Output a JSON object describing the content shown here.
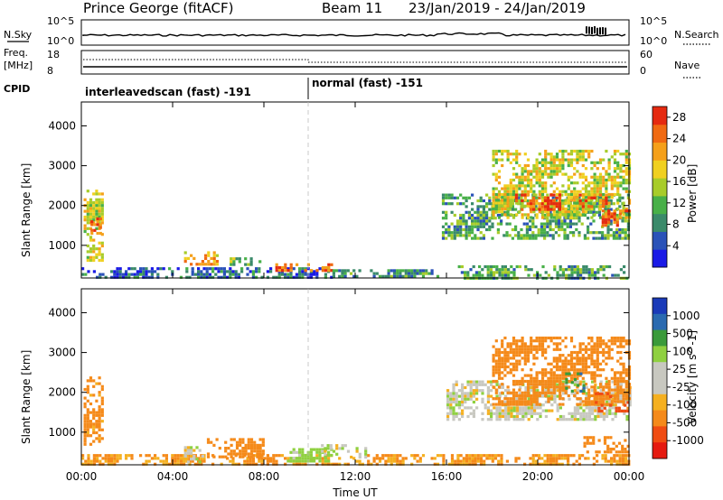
{
  "header": {
    "station": "Prince George (fitACF)",
    "beam": "Beam 11",
    "dates": "23/Jan/2019 - 24/Jan/2019"
  },
  "top_panels": {
    "nsky_label": "N.Sky",
    "nsky_ticks": [
      "10^5",
      "10^0"
    ],
    "nsearch_label": "N.Search",
    "nsearch_ticks": [
      "10^5",
      "10^0"
    ],
    "freq_label_line1": "Freq.",
    "freq_label_line2": "[MHz]",
    "freq_ticks": [
      "18",
      "8"
    ],
    "nave_label": "Nave",
    "nave_ticks": [
      "60",
      "0"
    ],
    "cpid_label": "CPID",
    "cpid_segments": [
      "interleavedscan (fast) -191",
      "normal (fast) -151"
    ]
  },
  "x_axis": {
    "label": "Time UT",
    "ticks": [
      "00:00",
      "04:00",
      "08:00",
      "12:00",
      "16:00",
      "20:00",
      "00:00"
    ]
  },
  "colors": {
    "power_scale": [
      "#1a1ae6",
      "#2a52b8",
      "#3a8a6a",
      "#48b048",
      "#a8cc2a",
      "#f0d020",
      "#f5a01a",
      "#f06a12",
      "#e52a10"
    ],
    "velocity_scale": [
      "#e51a10",
      "#f04c12",
      "#f58a1a",
      "#f5b020",
      "#c8c8c0",
      "#c8c8c0",
      "#8fd040",
      "#3a9a3a",
      "#2a6ab0",
      "#1a3ab8"
    ]
  },
  "chart_data": [
    {
      "type": "heatmap",
      "title": "",
      "xlabel": "",
      "ylabel": "Slant Range [km]",
      "ylim": [
        180,
        4600
      ],
      "xlim_hours": [
        0,
        24
      ],
      "yticks": [
        "1000",
        "2000",
        "3000",
        "4000"
      ],
      "colorbar_label": "Power [dB]",
      "colorbar_ticks": [
        "4",
        "8",
        "12",
        "16",
        "20",
        "24",
        "28"
      ],
      "regions": [
        {
          "t0": 0.1,
          "t1": 0.9,
          "r0": 600,
          "r1": 2400,
          "value": 18
        },
        {
          "t0": 0.4,
          "t1": 0.8,
          "r0": 1300,
          "r1": 1700,
          "value": 26
        },
        {
          "t0": 0.0,
          "t1": 11.0,
          "r0": 200,
          "r1": 450,
          "value": 8
        },
        {
          "t0": 4.5,
          "t1": 6.0,
          "r0": 550,
          "r1": 850,
          "value": 22
        },
        {
          "t0": 6.5,
          "t1": 7.8,
          "r0": 500,
          "r1": 700,
          "value": 14
        },
        {
          "t0": 8.5,
          "t1": 11.0,
          "r0": 350,
          "r1": 550,
          "value": 26
        },
        {
          "t0": 11.0,
          "t1": 16.0,
          "r0": 200,
          "r1": 400,
          "value": 10
        },
        {
          "t0": 15.8,
          "t1": 24.0,
          "r0": 1200,
          "r1": 2300,
          "value": 12
        },
        {
          "t0": 18.0,
          "t1": 24.0,
          "r0": 1700,
          "r1": 3400,
          "value": 18
        },
        {
          "t0": 19.0,
          "t1": 21.0,
          "r0": 1900,
          "r1": 2300,
          "value": 27
        },
        {
          "t0": 21.8,
          "t1": 23.0,
          "r0": 1950,
          "r1": 2300,
          "value": 26
        },
        {
          "t0": 22.8,
          "t1": 24.0,
          "r0": 1500,
          "r1": 1900,
          "value": 27
        },
        {
          "t0": 16.5,
          "t1": 24.0,
          "r0": 200,
          "r1": 500,
          "value": 12
        }
      ]
    },
    {
      "type": "heatmap",
      "title": "",
      "xlabel": "Time UT",
      "ylabel": "Slant Range [km]",
      "ylim": [
        180,
        4600
      ],
      "xlim_hours": [
        0,
        24
      ],
      "yticks": [
        "1000",
        "2000",
        "3000",
        "4000"
      ],
      "colorbar_label": "Velocity [m s^-1]",
      "colorbar_ticks": [
        "1000",
        "500",
        "100",
        "25",
        "-25",
        "-100",
        "-500",
        "-1000"
      ],
      "regions": [
        {
          "t0": 0.1,
          "t1": 0.9,
          "r0": 700,
          "r1": 2400,
          "value": -150
        },
        {
          "t0": 0.0,
          "t1": 11.0,
          "r0": 200,
          "r1": 450,
          "value": -110
        },
        {
          "t0": 4.5,
          "t1": 5.3,
          "r0": 250,
          "r1": 650,
          "value": 0
        },
        {
          "t0": 5.5,
          "t1": 8.0,
          "r0": 400,
          "r1": 850,
          "value": -300
        },
        {
          "t0": 9.0,
          "t1": 11.0,
          "r0": 300,
          "r1": 600,
          "value": 60
        },
        {
          "t0": 10.5,
          "t1": 12.5,
          "r0": 350,
          "r1": 700,
          "value": 0
        },
        {
          "t0": 16.0,
          "t1": 24.0,
          "r0": 1300,
          "r1": 2300,
          "value": 0
        },
        {
          "t0": 18.0,
          "t1": 24.0,
          "r0": 1700,
          "r1": 3400,
          "value": -200
        },
        {
          "t0": 21.2,
          "t1": 22.0,
          "r0": 2000,
          "r1": 2500,
          "value": 400
        },
        {
          "t0": 22.5,
          "t1": 24.0,
          "r0": 1500,
          "r1": 2000,
          "value": -600
        },
        {
          "t0": 11.0,
          "t1": 24.0,
          "r0": 200,
          "r1": 450,
          "value": -110
        },
        {
          "t0": 22.0,
          "t1": 24.0,
          "r0": 500,
          "r1": 900,
          "value": -300
        }
      ]
    }
  ]
}
